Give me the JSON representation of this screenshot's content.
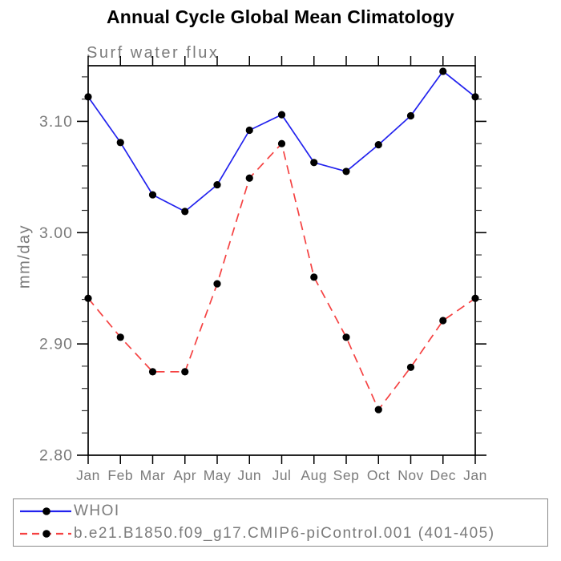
{
  "chart_data": {
    "type": "line",
    "title": "Annual Cycle Global Mean Climatology",
    "subtitle": "Surf water flux",
    "xlabel": "",
    "ylabel": "mm/day",
    "categories": [
      "Jan",
      "Feb",
      "Mar",
      "Apr",
      "May",
      "Jun",
      "Jul",
      "Aug",
      "Sep",
      "Oct",
      "Nov",
      "Dec",
      "Jan"
    ],
    "series": [
      {
        "name": "WHOI",
        "color": "#2222ee",
        "line_style": "solid",
        "marker": "filled-circle",
        "marker_color": "#000000",
        "values": [
          3.122,
          3.081,
          3.034,
          3.019,
          3.043,
          3.092,
          3.106,
          3.063,
          3.055,
          3.079,
          3.105,
          3.145,
          3.122
        ]
      },
      {
        "name": "b.e21.B1850.f09_g17.CMIP6-piControl.001 (401-405)",
        "color": "#f54242",
        "line_style": "dashed",
        "marker": "filled-circle",
        "marker_color": "#000000",
        "values": [
          2.941,
          2.906,
          2.875,
          2.875,
          2.954,
          3.049,
          3.08,
          2.96,
          2.906,
          2.841,
          2.879,
          2.921,
          2.941
        ]
      }
    ],
    "ylim": [
      2.8,
      3.15
    ],
    "yticks": [
      2.8,
      2.9,
      3.0,
      3.1
    ],
    "ytick_labels": [
      "2.80",
      "2.90",
      "3.00",
      "3.10"
    ],
    "minor_tick_step": 0.02,
    "grid": false,
    "legend_position": "bottom",
    "colors": {
      "axis": "#000000",
      "minor_tick": "#333333",
      "tick_text": "#7b7b7b",
      "title_text": "#000000",
      "legend_border": "#8a8a8a",
      "background": "#ffffff"
    }
  }
}
